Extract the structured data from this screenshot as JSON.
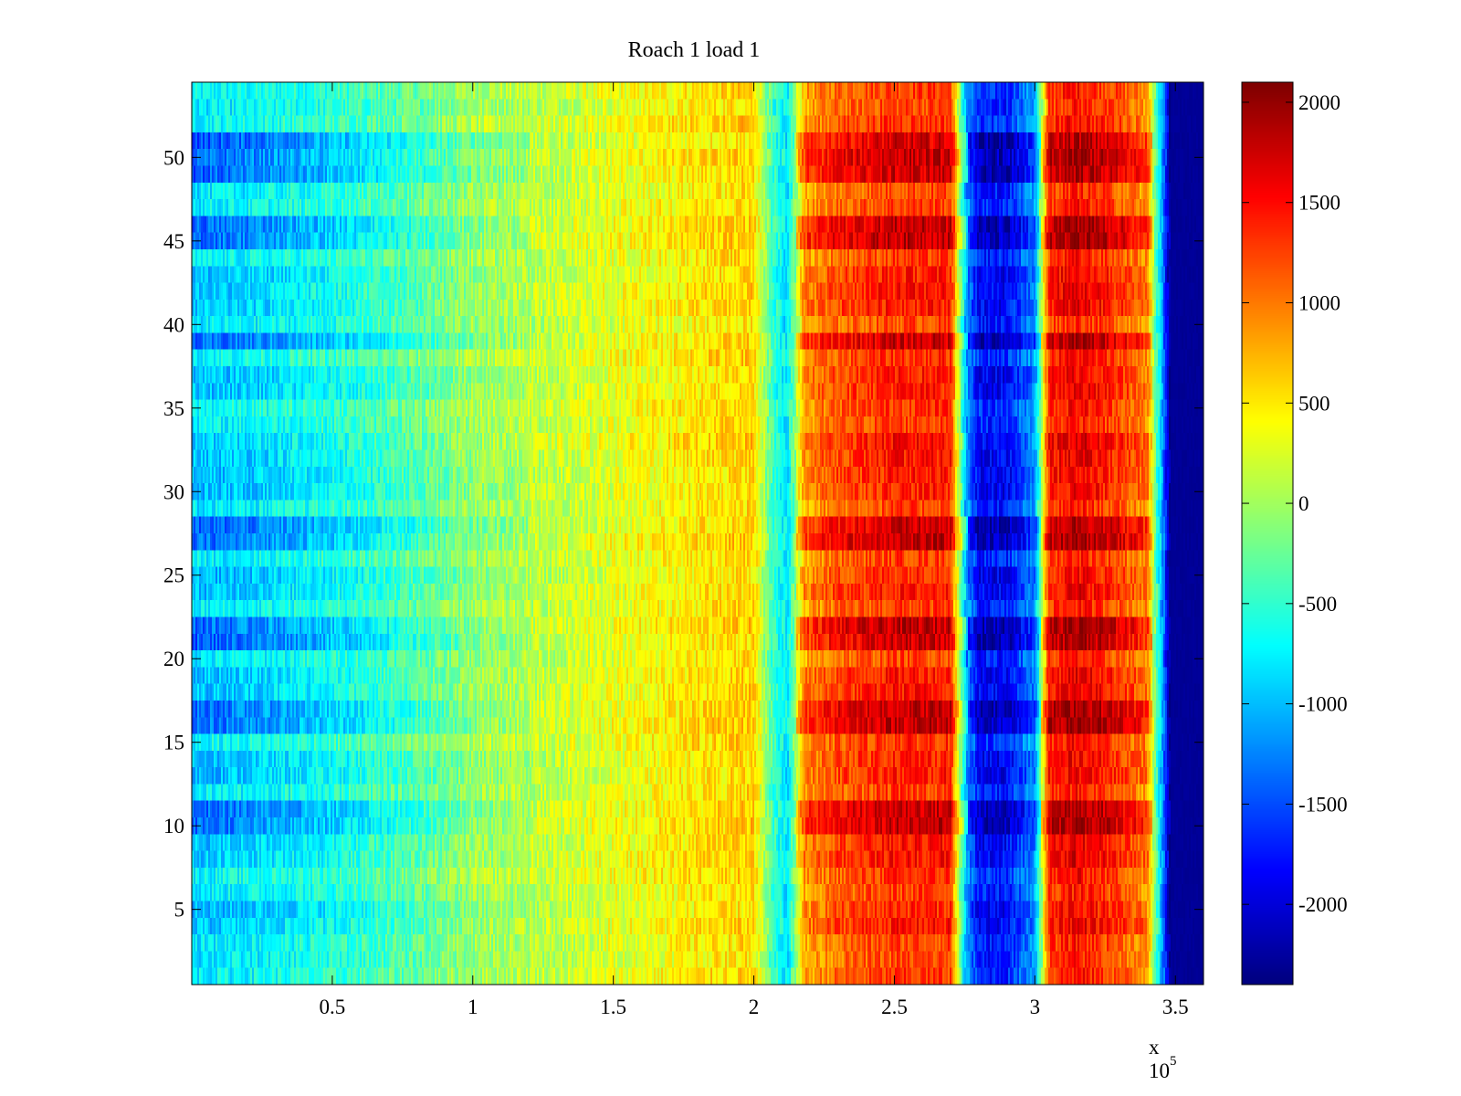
{
  "chart_data": {
    "type": "heatmap",
    "title": "Roach 1 load 1",
    "xlabel": "",
    "ylabel": "",
    "x_multiplier": "x 10",
    "x_multiplier_exp": "5",
    "xlim": [
      0,
      360000
    ],
    "ylim": [
      0.5,
      54.5
    ],
    "rows": 54,
    "x_ticks": [
      50000,
      100000,
      150000,
      200000,
      250000,
      300000,
      350000
    ],
    "x_tick_labels": [
      "0.5",
      "1",
      "1.5",
      "2",
      "2.5",
      "3",
      "3.5"
    ],
    "y_ticks": [
      5,
      10,
      15,
      20,
      25,
      30,
      35,
      40,
      45,
      50
    ],
    "y_tick_labels": [
      "5",
      "10",
      "15",
      "20",
      "25",
      "30",
      "35",
      "40",
      "45",
      "50"
    ],
    "colormap": "jet",
    "clim": [
      -2400,
      2100
    ],
    "colorbar_ticks": [
      2000,
      1500,
      1000,
      500,
      0,
      -500,
      -1000,
      -1500,
      -2000
    ],
    "colorbar_tick_labels": [
      "2000",
      "1500",
      "1000",
      "500",
      "0",
      "-500",
      "-1000",
      "-1500",
      "-2000"
    ],
    "column_profile": {
      "x": [
        0,
        20000,
        50000,
        80000,
        100000,
        130000,
        150000,
        180000,
        200000,
        207000,
        212000,
        218000,
        230000,
        250000,
        270000,
        276000,
        280000,
        290000,
        300000,
        305000,
        315000,
        330000,
        340000,
        345000,
        348000,
        360000
      ],
      "value": [
        -650,
        -600,
        -450,
        -200,
        50,
        150,
        300,
        500,
        600,
        -500,
        -800,
        700,
        1000,
        1200,
        1200,
        -1400,
        -2000,
        -2000,
        -1400,
        1200,
        1400,
        1100,
        800,
        -1000,
        -2300,
        -2300
      ]
    },
    "strong_rows": [
      10,
      11,
      16,
      17,
      21,
      22,
      27,
      28,
      39,
      45,
      46,
      49,
      50,
      51
    ],
    "weak_rows": [
      4,
      5,
      8,
      9,
      13,
      14,
      18,
      19,
      24,
      25,
      30,
      31,
      32,
      33,
      36,
      37,
      41,
      42,
      43
    ]
  }
}
